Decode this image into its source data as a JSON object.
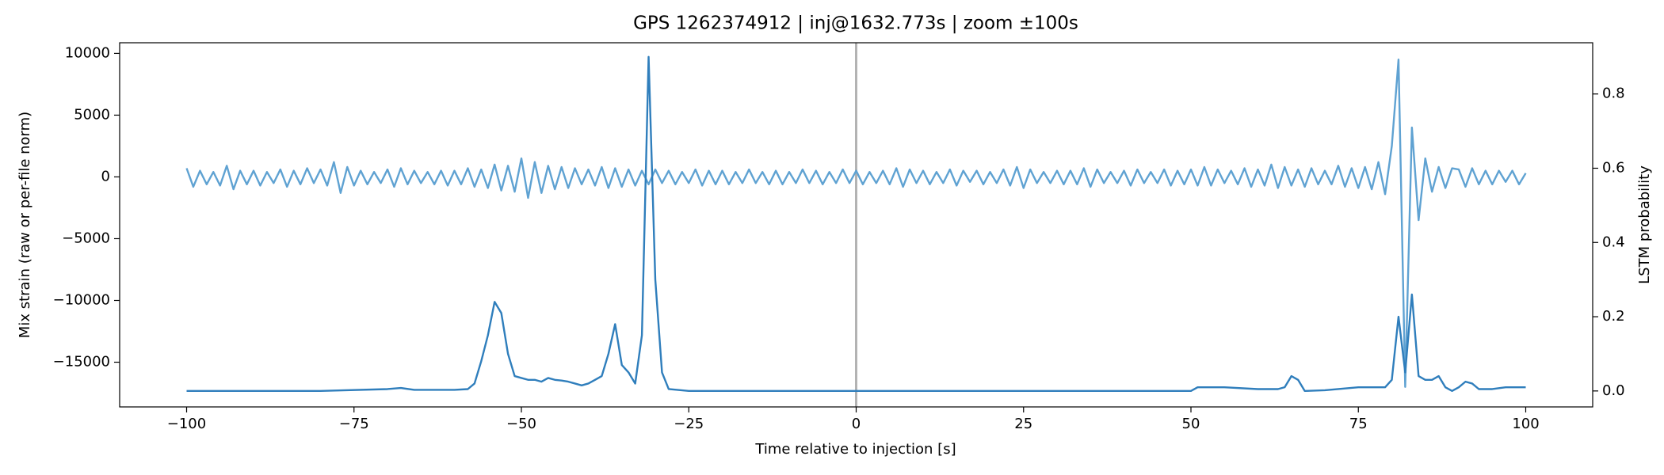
{
  "chart_data": {
    "type": "line",
    "title": "GPS 1262374912 | inj@1632.773s | zoom ±100s",
    "xlabel": "Time relative to injection [s]",
    "ylabel": "Mix strain (raw or per-file norm)",
    "y2label": "LSTM probability",
    "xlim": [
      -110,
      110
    ],
    "xticks": [
      {
        "value": -100,
        "label": "−100"
      },
      {
        "value": -75,
        "label": "−75"
      },
      {
        "value": -50,
        "label": "−50"
      },
      {
        "value": -25,
        "label": "−25"
      },
      0,
      25,
      50,
      75,
      100
    ],
    "ylim": [
      -18620,
      10860
    ],
    "yticks": [
      {
        "value": -15000,
        "label": "−15000"
      },
      {
        "value": -10000,
        "label": "−10000"
      },
      {
        "value": -5000,
        "label": "−5000"
      },
      0,
      5000,
      10000
    ],
    "y2lim": [
      -0.043,
      0.938
    ],
    "y2ticks": [
      {
        "value": 0,
        "label": "0.0"
      },
      0.2,
      0.4,
      0.6,
      0.8
    ],
    "vline": 0,
    "vline_color": "#b3b3b3",
    "x": [
      -100,
      -99,
      -98,
      -97,
      -96,
      -95,
      -94,
      -93,
      -92,
      -91,
      -90,
      -89,
      -88,
      -87,
      -86,
      -85,
      -84,
      -83,
      -82,
      -81,
      -80,
      -79,
      -78,
      -77,
      -76,
      -75,
      -74,
      -73,
      -72,
      -71,
      -70,
      -69,
      -68,
      -67,
      -66,
      -65,
      -64,
      -63,
      -62,
      -61,
      -60,
      -59,
      -58,
      -57,
      -56,
      -55,
      -54,
      -53,
      -52,
      -51,
      -50,
      -49,
      -48,
      -47,
      -46,
      -45,
      -44,
      -43,
      -42,
      -41,
      -40,
      -39,
      -38,
      -37,
      -36,
      -35,
      -34,
      -33,
      -32,
      -31,
      -30,
      -29,
      -28,
      -27,
      -26,
      -25,
      -24,
      -23,
      -22,
      -21,
      -20,
      -19,
      -18,
      -17,
      -16,
      -15,
      -14,
      -13,
      -12,
      -11,
      -10,
      -9,
      -8,
      -7,
      -6,
      -5,
      -4,
      -3,
      -2,
      -1,
      0,
      1,
      2,
      3,
      4,
      5,
      6,
      7,
      8,
      9,
      10,
      11,
      12,
      13,
      14,
      15,
      16,
      17,
      18,
      19,
      20,
      21,
      22,
      23,
      24,
      25,
      26,
      27,
      28,
      29,
      30,
      31,
      32,
      33,
      34,
      35,
      36,
      37,
      38,
      39,
      40,
      41,
      42,
      43,
      44,
      45,
      46,
      47,
      48,
      49,
      50,
      51,
      52,
      53,
      54,
      55,
      56,
      57,
      58,
      59,
      60,
      61,
      62,
      63,
      64,
      65,
      66,
      67,
      68,
      69,
      70,
      71,
      72,
      73,
      74,
      75,
      76,
      77,
      78,
      79,
      80,
      81,
      82,
      83,
      84,
      85,
      86,
      87,
      88,
      89,
      90,
      91,
      92,
      93,
      94,
      95,
      96,
      97,
      98,
      99,
      100
    ],
    "series": [
      {
        "color": "#5fa2d2",
        "values": [
          700,
          -800,
          500,
          -600,
          400,
          -700,
          900,
          -1000,
          500,
          -600,
          500,
          -700,
          400,
          -500,
          600,
          -800,
          500,
          -600,
          700,
          -500,
          600,
          -700,
          1200,
          -1300,
          800,
          -700,
          500,
          -600,
          400,
          -500,
          600,
          -800,
          700,
          -600,
          500,
          -500,
          400,
          -600,
          500,
          -700,
          500,
          -600,
          700,
          -800,
          600,
          -900,
          1000,
          -1100,
          900,
          -1200,
          1500,
          -1700,
          1200,
          -1300,
          900,
          -1000,
          800,
          -900,
          700,
          -600,
          600,
          -700,
          800,
          -900,
          700,
          -800,
          600,
          -700,
          500,
          -600,
          600,
          -500,
          500,
          -600,
          400,
          -500,
          600,
          -700,
          500,
          -600,
          500,
          -600,
          400,
          -500,
          600,
          -500,
          400,
          -600,
          500,
          -600,
          400,
          -500,
          600,
          -500,
          500,
          -600,
          400,
          -500,
          600,
          -500,
          500,
          -600,
          400,
          -500,
          500,
          -600,
          700,
          -800,
          600,
          -500,
          500,
          -600,
          400,
          -500,
          600,
          -700,
          500,
          -400,
          500,
          -600,
          400,
          -500,
          600,
          -700,
          800,
          -900,
          600,
          -500,
          400,
          -500,
          500,
          -600,
          500,
          -600,
          700,
          -800,
          600,
          -500,
          400,
          -500,
          500,
          -700,
          600,
          -500,
          400,
          -500,
          600,
          -700,
          500,
          -600,
          600,
          -700,
          800,
          -700,
          600,
          -500,
          500,
          -600,
          700,
          -800,
          600,
          -700,
          1000,
          -900,
          800,
          -700,
          600,
          -800,
          700,
          -600,
          500,
          -600,
          900,
          -800,
          700,
          -900,
          800,
          -1000,
          1200,
          -1400,
          2500,
          9500,
          -17000,
          4000,
          -3500,
          1500,
          -1200,
          800,
          -900,
          700,
          600,
          -800,
          700,
          -600,
          500,
          -600,
          500,
          -400,
          500,
          -600,
          300
        ]
      },
      {
        "color": "#2f7ebc",
        "axis": "y2",
        "x": [
          -100,
          -80,
          -70,
          -68,
          -66,
          -60,
          -58,
          -57,
          -56,
          -55,
          -54,
          -53,
          -52,
          -51,
          -50,
          -49,
          -48,
          -47,
          -46,
          -45,
          -44,
          -43,
          -42,
          -41,
          -40,
          -39,
          -38,
          -37,
          -36,
          -35,
          -34,
          -33,
          -32,
          -31,
          -30,
          -29,
          -28,
          -25,
          0,
          25,
          50,
          51,
          55,
          60,
          63,
          64,
          65,
          66,
          67,
          70,
          75,
          78,
          79,
          80,
          81,
          82,
          83,
          84,
          85,
          86,
          87,
          88,
          89,
          90,
          91,
          92,
          93,
          95,
          97,
          100
        ],
        "values": [
          0.0,
          0.0,
          0.005,
          0.008,
          0.003,
          0.003,
          0.005,
          0.02,
          0.08,
          0.15,
          0.24,
          0.21,
          0.1,
          0.04,
          0.035,
          0.03,
          0.03,
          0.025,
          0.035,
          0.03,
          0.028,
          0.025,
          0.02,
          0.015,
          0.02,
          0.03,
          0.04,
          0.1,
          0.18,
          0.07,
          0.05,
          0.02,
          0.15,
          0.9,
          0.3,
          0.05,
          0.005,
          0.0,
          0.0,
          0.0,
          0.0,
          0.01,
          0.01,
          0.005,
          0.005,
          0.01,
          0.04,
          0.03,
          0.0,
          0.002,
          0.01,
          0.01,
          0.01,
          0.03,
          0.2,
          0.05,
          0.26,
          0.04,
          0.03,
          0.03,
          0.04,
          0.01,
          0.0,
          0.01,
          0.025,
          0.02,
          0.005,
          0.005,
          0.01,
          0.01
        ]
      }
    ]
  }
}
